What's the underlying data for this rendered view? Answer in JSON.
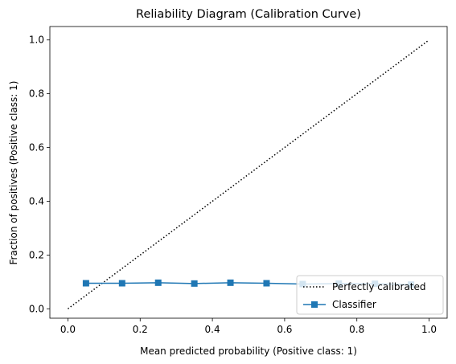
{
  "chart_data": {
    "type": "line",
    "title": "Reliability Diagram (Calibration Curve)",
    "xlabel": "Mean predicted probability (Positive class: 1)",
    "ylabel": "Fraction of positives (Positive class: 1)",
    "xlim": [
      -0.05,
      1.05
    ],
    "ylim": [
      -0.035,
      1.05
    ],
    "xticks": [
      "0.0",
      "0.2",
      "0.4",
      "0.6",
      "0.8",
      "1.0"
    ],
    "yticks": [
      "0.0",
      "0.2",
      "0.4",
      "0.6",
      "0.8",
      "1.0"
    ],
    "grid": false,
    "legend_position": "lower-right",
    "series": [
      {
        "name": "Perfectly calibrated",
        "style": "dotted",
        "color": "#000000",
        "x": [
          0.0,
          1.0
        ],
        "y": [
          0.0,
          1.0
        ]
      },
      {
        "name": "Classifier",
        "style": "solid",
        "marker": "square",
        "color": "#1f77b4",
        "x": [
          0.05,
          0.15,
          0.25,
          0.35,
          0.45,
          0.55,
          0.65,
          0.75,
          0.85,
          0.95
        ],
        "y": [
          0.095,
          0.095,
          0.097,
          0.094,
          0.097,
          0.095,
          0.092,
          0.094,
          0.093,
          0.09
        ]
      }
    ]
  }
}
